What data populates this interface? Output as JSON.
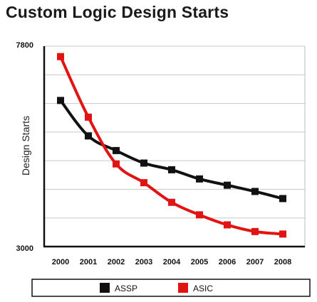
{
  "chart_data": {
    "type": "line",
    "title": "Custom Logic Design Starts",
    "xlabel": "",
    "ylabel": "Design Starts",
    "ylim": [
      3000,
      7800
    ],
    "ytick_labels": [
      "3000",
      "7800"
    ],
    "x": [
      "2000",
      "2001",
      "2002",
      "2003",
      "2004",
      "2005",
      "2006",
      "2007",
      "2008"
    ],
    "grid": true,
    "legend_position": "bottom",
    "series": [
      {
        "name": "ASSP",
        "color": "#111111",
        "values": [
          6500,
          5650,
          5300,
          5000,
          4840,
          4620,
          4470,
          4320,
          4150
        ]
      },
      {
        "name": "ASIC",
        "color": "#e11414",
        "values": [
          7550,
          6100,
          4980,
          4530,
          4060,
          3760,
          3520,
          3360,
          3300
        ]
      }
    ]
  }
}
